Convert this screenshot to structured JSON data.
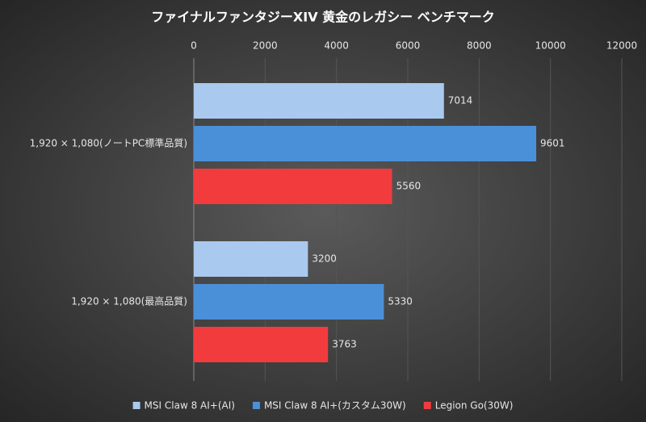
{
  "chart_data": {
    "type": "hbar",
    "title": "ファイナルファンタジーXIV 黄金のレガシー ベンチマーク",
    "categories": [
      "1,920 × 1,080(ノートPC標準品質)",
      "1,920 × 1,080(最高品質)"
    ],
    "series": [
      {
        "name": "MSI Claw 8 AI+(AI)",
        "color": "#a9c9ee",
        "values": [
          7014,
          3200
        ]
      },
      {
        "name": "MSI Claw 8 AI+(カスタム30W)",
        "color": "#4a90d9",
        "values": [
          9601,
          5330
        ]
      },
      {
        "name": "Legion Go(30W)",
        "color": "#f23b3d",
        "values": [
          5560,
          3763
        ]
      }
    ],
    "xlim": [
      0,
      12000
    ],
    "xticks": [
      0,
      2000,
      4000,
      6000,
      8000,
      10000,
      12000
    ],
    "grid": true,
    "legend": "bottom"
  }
}
